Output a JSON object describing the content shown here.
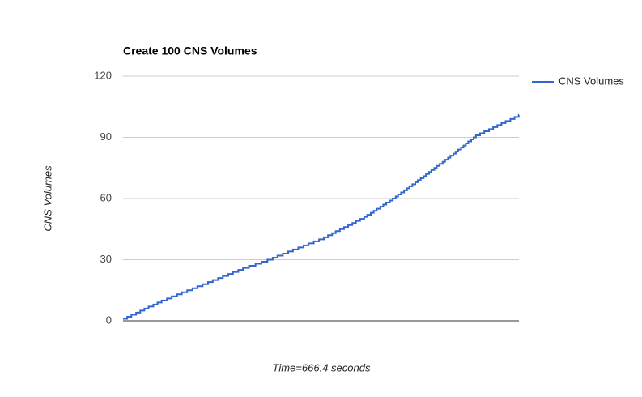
{
  "chart_data": {
    "type": "line",
    "title": "Create 100 CNS Volumes",
    "x_label": "Time=666.4 seconds",
    "y_label": "CNS Volumes",
    "x": [
      0,
      7,
      14,
      22,
      29,
      36,
      43,
      51,
      58,
      65,
      74,
      82,
      91,
      99,
      108,
      117,
      125,
      134,
      143,
      151,
      160,
      168,
      177,
      185,
      194,
      202,
      212,
      223,
      233,
      243,
      252,
      260,
      269,
      278,
      286,
      295,
      304,
      312,
      321,
      330,
      338,
      345,
      352,
      358,
      365,
      372,
      379,
      386,
      392,
      399,
      406,
      411,
      417,
      422,
      427,
      433,
      438,
      443,
      449,
      454,
      459,
      463,
      468,
      473,
      478,
      482,
      487,
      492,
      496,
      501,
      506,
      510,
      515,
      519,
      524,
      528,
      533,
      538,
      542,
      547,
      551,
      556,
      560,
      564,
      569,
      573,
      577,
      581,
      586,
      590,
      594,
      601,
      608,
      616,
      623,
      630,
      637,
      644,
      652,
      659,
      666
    ],
    "series": [
      {
        "name": "CNS Volumes",
        "color": "#3366cc",
        "values": [
          1,
          2,
          3,
          4,
          5,
          6,
          7,
          8,
          9,
          10,
          11,
          12,
          13,
          14,
          15,
          16,
          17,
          18,
          19,
          20,
          21,
          22,
          23,
          24,
          25,
          26,
          27,
          28,
          29,
          30,
          31,
          32,
          33,
          34,
          35,
          36,
          37,
          38,
          39,
          40,
          41,
          42,
          43,
          44,
          45,
          46,
          47,
          48,
          49,
          50,
          51,
          52,
          53,
          54,
          55,
          56,
          57,
          58,
          59,
          60,
          61,
          62,
          63,
          64,
          65,
          66,
          67,
          68,
          69,
          70,
          71,
          72,
          73,
          74,
          75,
          76,
          77,
          78,
          79,
          80,
          81,
          82,
          83,
          84,
          85,
          86,
          87,
          88,
          89,
          90,
          91,
          92,
          93,
          94,
          95,
          96,
          97,
          98,
          99,
          100,
          101
        ]
      }
    ],
    "xlim": [
      0,
      666.4
    ],
    "ylim": [
      0,
      120
    ],
    "yticks": [
      0,
      30,
      60,
      90,
      120
    ],
    "grid": true,
    "legend": "right",
    "step": true
  }
}
